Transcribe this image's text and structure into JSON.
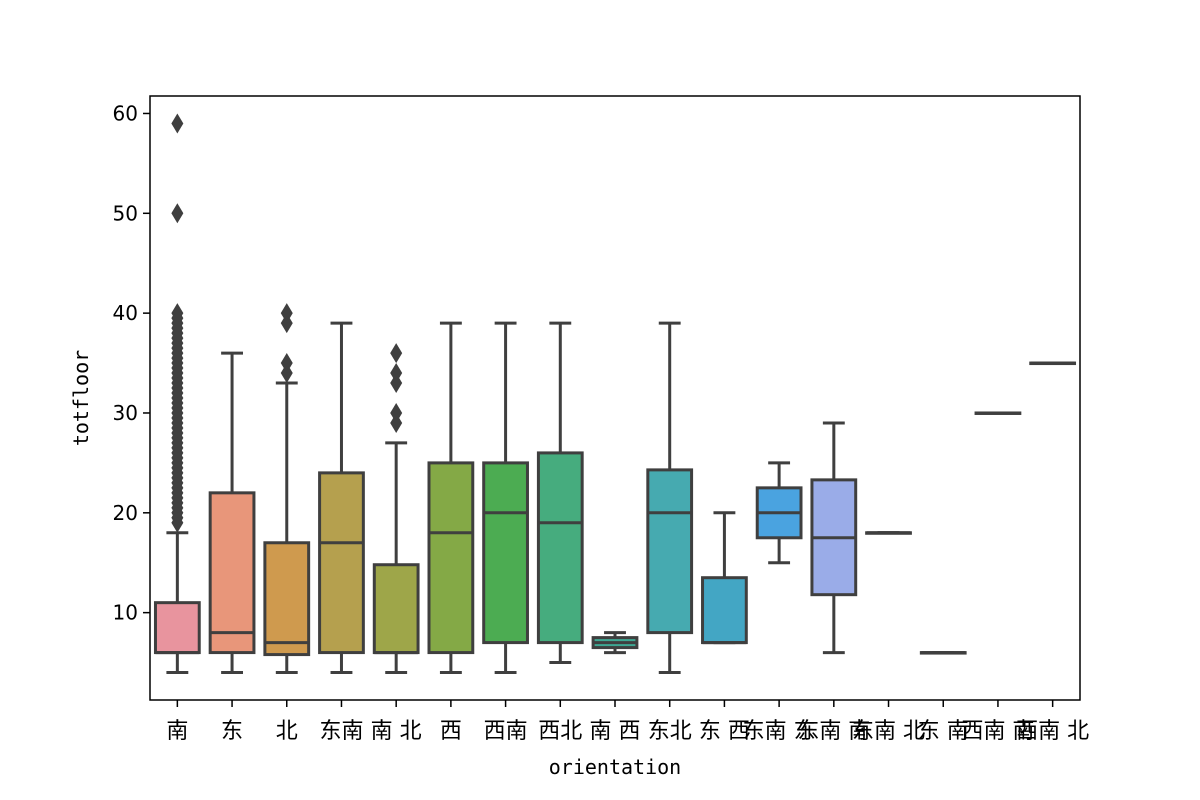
{
  "chart_data": {
    "type": "box",
    "xlabel": "orientation",
    "ylabel": "totfloor",
    "ylim": [
      1.25,
      61.75
    ],
    "yticks": [
      10,
      20,
      30,
      40,
      50,
      60
    ],
    "grid": false,
    "categories": [
      {
        "label": "南",
        "color": "#e8949e",
        "min": 4,
        "q1": 6,
        "median": 6,
        "q3": 11,
        "max": 18,
        "outliers": [
          19,
          19.5,
          20,
          20.5,
          21,
          21.5,
          22,
          22.5,
          23,
          23.5,
          24,
          24.5,
          25,
          25.5,
          26,
          26.5,
          27,
          27.5,
          28,
          28.5,
          29,
          29.5,
          30,
          30.5,
          31,
          31.5,
          32,
          32.5,
          33,
          33.5,
          34,
          34.5,
          35,
          35.5,
          36,
          36.5,
          37,
          37.5,
          38,
          38.5,
          39,
          39.5,
          40,
          50,
          59
        ]
      },
      {
        "label": "东",
        "color": "#e8967a",
        "min": 4,
        "q1": 6,
        "median": 8,
        "q3": 22,
        "max": 36,
        "outliers": []
      },
      {
        "label": "北",
        "color": "#cf9a4e",
        "min": 4,
        "q1": 5.8,
        "median": 7,
        "q3": 17,
        "max": 33,
        "outliers": [
          34,
          35,
          39,
          40
        ]
      },
      {
        "label": "东南",
        "color": "#b5a04e",
        "min": 4,
        "q1": 6,
        "median": 17,
        "q3": 24,
        "max": 39,
        "outliers": []
      },
      {
        "label": "南 北",
        "color": "#9ea649",
        "min": 4,
        "q1": 6,
        "median": 6,
        "q3": 14.8,
        "max": 27,
        "outliers": [
          29,
          30,
          33,
          34,
          36
        ]
      },
      {
        "label": "西",
        "color": "#84a946",
        "min": 4,
        "q1": 6,
        "median": 18,
        "q3": 25,
        "max": 39,
        "outliers": []
      },
      {
        "label": "西南",
        "color": "#4cac52",
        "min": 4,
        "q1": 7,
        "median": 20,
        "q3": 25,
        "max": 39,
        "outliers": []
      },
      {
        "label": "西北",
        "color": "#46ac7e",
        "min": 5,
        "q1": 7,
        "median": 19,
        "q3": 26,
        "max": 39,
        "outliers": []
      },
      {
        "label": "南 西",
        "color": "#3ea893",
        "min": 6,
        "q1": 6.5,
        "median": 7,
        "q3": 7.5,
        "max": 8,
        "outliers": []
      },
      {
        "label": "东北",
        "color": "#46aab0",
        "min": 4,
        "q1": 8,
        "median": 20,
        "q3": 24.3,
        "max": 39,
        "outliers": []
      },
      {
        "label": "东 西",
        "color": "#43a6c4",
        "min": 7,
        "q1": 7,
        "median": 7,
        "q3": 13.5,
        "max": 20,
        "outliers": []
      },
      {
        "label": "东南 东",
        "color": "#4aa3e0",
        "min": 15,
        "q1": 17.5,
        "median": 20,
        "q3": 22.5,
        "max": 25,
        "outliers": []
      },
      {
        "label": "东南 南",
        "color": "#9aace8",
        "min": 6,
        "q1": 11.8,
        "median": 17.5,
        "q3": 23.3,
        "max": 29,
        "outliers": []
      },
      {
        "label": "东南 北",
        "color": "#b8a2e8",
        "min": 18,
        "q1": 18,
        "median": 18,
        "q3": 18,
        "max": 18,
        "outliers": []
      },
      {
        "label": "东 南",
        "color": "#d892e0",
        "min": 6,
        "q1": 6,
        "median": 6,
        "q3": 6,
        "max": 6,
        "outliers": []
      },
      {
        "label": "西南 南",
        "color": "#e688c8",
        "min": 30,
        "q1": 30,
        "median": 30,
        "q3": 30,
        "max": 30,
        "outliers": []
      },
      {
        "label": "西南 北",
        "color": "#e88aa8",
        "min": 35,
        "q1": 35,
        "median": 35,
        "q3": 35,
        "max": 35,
        "outliers": []
      }
    ]
  }
}
